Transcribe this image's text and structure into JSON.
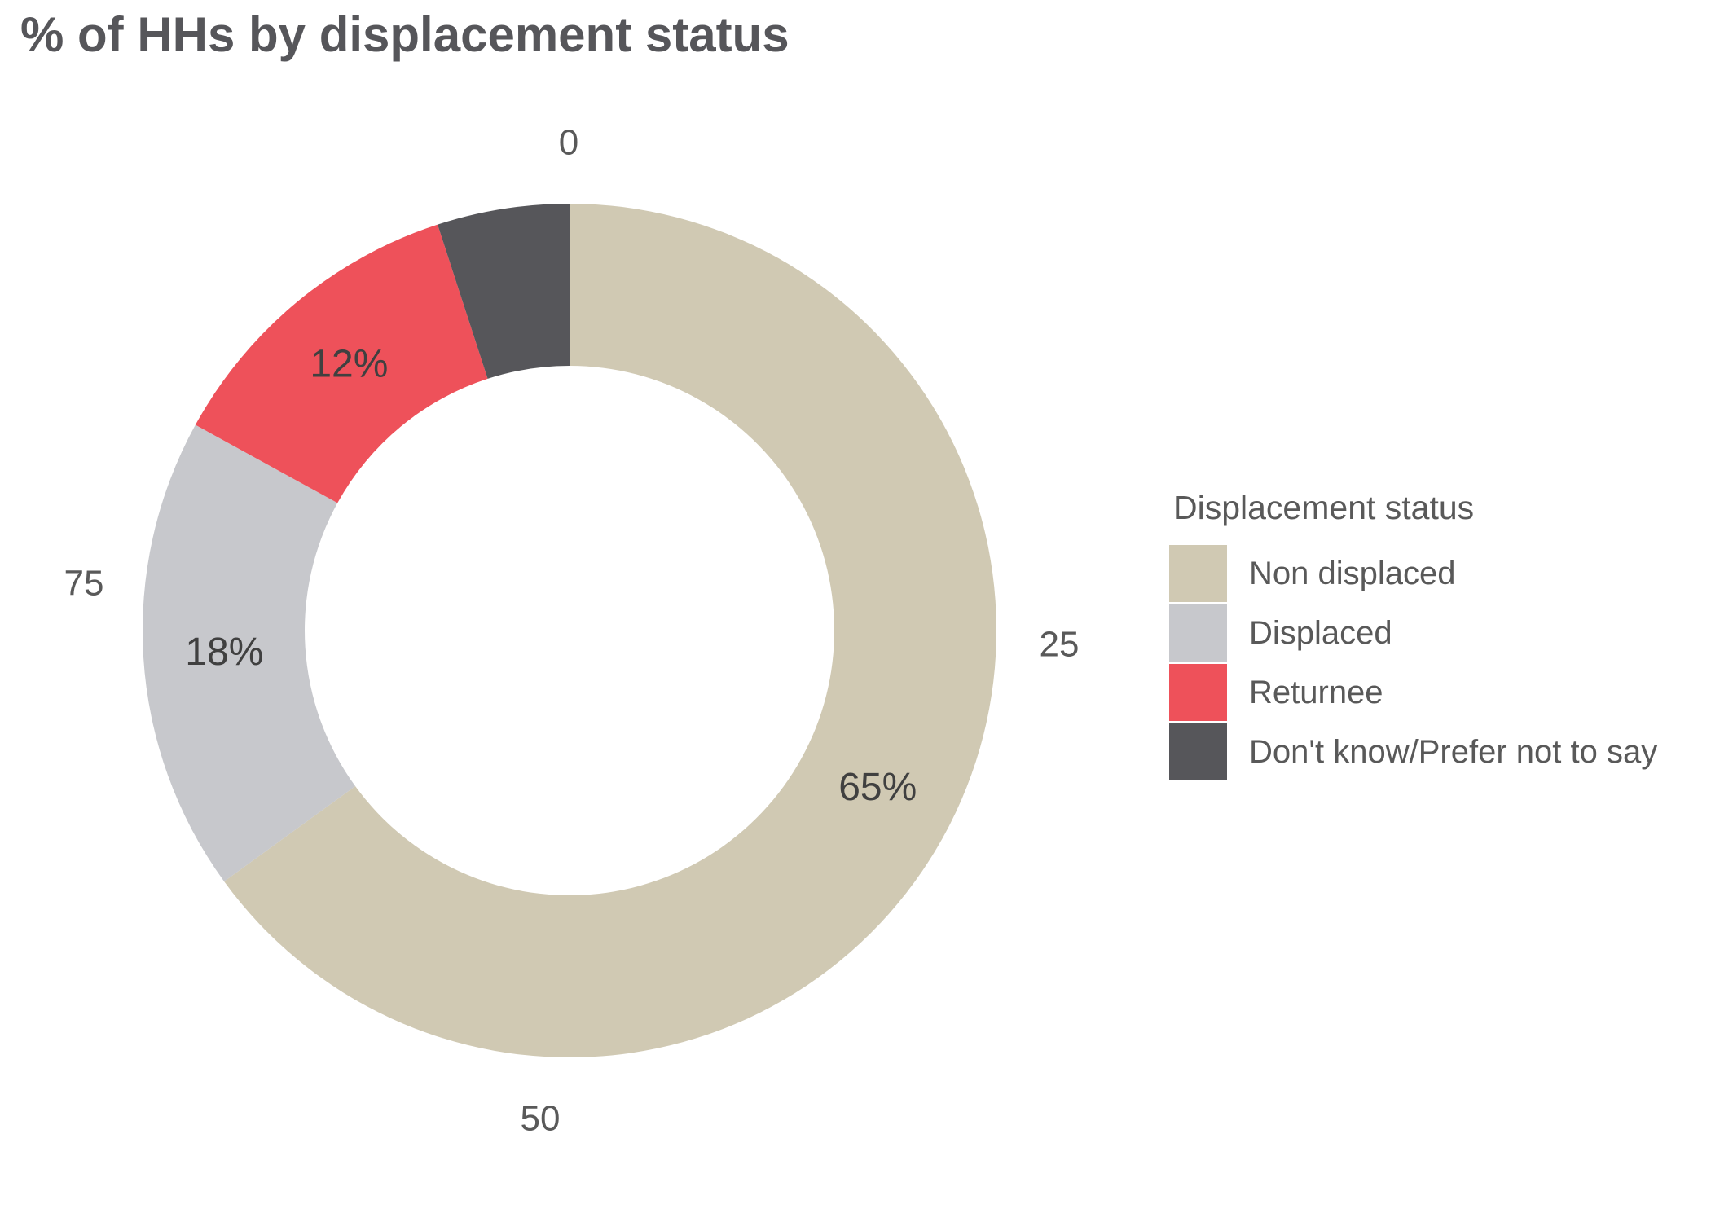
{
  "title": "% of HHs by displacement status",
  "chart_data": {
    "type": "donut",
    "title": "% of HHs by displacement status",
    "legend_title": "Displacement status",
    "legend_position": "right",
    "direction": "clockwise",
    "start_angle_deg": 0,
    "inner_radius_ratio": 0.62,
    "slices": [
      {
        "label": "Non displaced",
        "value": 65,
        "data_label": "65%",
        "color": "#d0c9b3"
      },
      {
        "label": "Displaced",
        "value": 18,
        "data_label": "18%",
        "color": "#c7c8cc"
      },
      {
        "label": "Returnee",
        "value": 12,
        "data_label": "12%",
        "color": "#ee515a"
      },
      {
        "label": "Don't know/Prefer not to say",
        "value": 5,
        "data_label": "",
        "color": "#56565a"
      }
    ],
    "axis_ticks": [
      "0",
      "25",
      "50",
      "75"
    ],
    "data_label_color": "#404040",
    "tick_color": "#595959"
  }
}
